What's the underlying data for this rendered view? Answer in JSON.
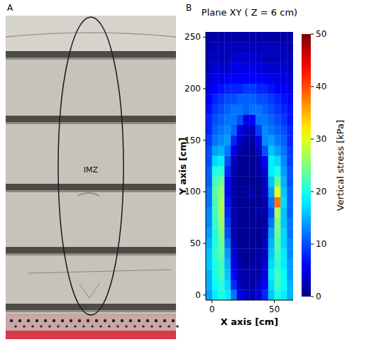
{
  "photo": {
    "label": "A",
    "annotation": "IMZ"
  },
  "chart_data": {
    "type": "heatmap",
    "panel_label": "B",
    "title": "Plane XY ( Z = 6 cm)",
    "x_label": "X axis [cm]",
    "y_label": "Y axis [cm]",
    "xlim": [
      -5,
      65
    ],
    "ylim": [
      -5,
      255
    ],
    "xticks": [
      0,
      50
    ],
    "yticks": [
      0,
      50,
      100,
      150,
      200,
      250
    ],
    "x": [
      -2.5,
      2.5,
      7.5,
      12.5,
      17.5,
      22.5,
      27.5,
      32.5,
      37.5,
      42.5,
      47.5,
      52.5,
      57.5,
      62.5
    ],
    "y": [
      0,
      10,
      20,
      30,
      40,
      50,
      60,
      70,
      80,
      90,
      100,
      110,
      120,
      130,
      140,
      150,
      160,
      170,
      180,
      190,
      200,
      210,
      220,
      230,
      240,
      250
    ],
    "cells": [
      [
        14,
        18,
        20,
        18,
        12,
        5,
        3,
        3,
        4,
        8,
        16,
        20,
        18,
        15
      ],
      [
        15,
        19,
        21,
        17,
        8,
        3,
        2,
        2,
        3,
        6,
        17,
        22,
        19,
        15
      ],
      [
        15,
        20,
        22,
        16,
        6,
        2,
        2,
        2,
        2,
        5,
        18,
        22,
        19,
        14
      ],
      [
        16,
        20,
        22,
        15,
        5,
        2,
        1,
        2,
        2,
        4,
        17,
        21,
        18,
        14
      ],
      [
        16,
        21,
        23,
        14,
        4,
        2,
        1,
        1,
        2,
        3,
        16,
        22,
        18,
        13
      ],
      [
        15,
        20,
        24,
        12,
        3,
        1,
        1,
        1,
        1,
        3,
        15,
        23,
        17,
        13
      ],
      [
        14,
        20,
        25,
        10,
        2,
        1,
        1,
        1,
        1,
        2,
        14,
        24,
        17,
        12
      ],
      [
        13,
        21,
        26,
        9,
        2,
        1,
        1,
        1,
        1,
        2,
        12,
        25,
        16,
        12
      ],
      [
        13,
        22,
        27,
        8,
        2,
        1,
        1,
        1,
        2,
        2,
        10,
        27,
        16,
        11
      ],
      [
        12,
        22,
        27,
        7,
        2,
        1,
        1,
        1,
        1,
        2,
        12,
        38,
        17,
        11
      ],
      [
        12,
        23,
        26,
        6,
        2,
        1,
        1,
        2,
        1,
        3,
        14,
        30,
        16,
        11
      ],
      [
        11,
        22,
        24,
        6,
        2,
        1,
        1,
        1,
        1,
        3,
        16,
        24,
        15,
        10
      ],
      [
        11,
        20,
        21,
        8,
        2,
        1,
        1,
        1,
        2,
        4,
        18,
        20,
        14,
        10
      ],
      [
        10,
        17,
        18,
        10,
        3,
        1,
        1,
        1,
        2,
        6,
        18,
        17,
        13,
        9
      ],
      [
        10,
        14,
        15,
        12,
        5,
        2,
        1,
        1,
        3,
        10,
        16,
        14,
        12,
        9
      ],
      [
        9,
        12,
        13,
        14,
        8,
        3,
        2,
        2,
        5,
        13,
        14,
        12,
        11,
        8
      ],
      [
        8,
        11,
        12,
        13,
        11,
        5,
        3,
        3,
        9,
        13,
        12,
        11,
        10,
        8
      ],
      [
        8,
        10,
        11,
        12,
        12,
        10,
        5,
        6,
        12,
        12,
        11,
        10,
        9,
        7
      ],
      [
        7,
        9,
        10,
        11,
        12,
        12,
        11,
        12,
        12,
        11,
        10,
        9,
        8,
        7
      ],
      [
        6,
        8,
        9,
        10,
        10,
        11,
        11,
        11,
        10,
        10,
        9,
        8,
        7,
        6
      ],
      [
        5,
        6,
        7,
        8,
        8,
        8,
        9,
        9,
        8,
        8,
        7,
        6,
        6,
        5
      ],
      [
        4,
        5,
        5,
        6,
        6,
        6,
        6,
        6,
        6,
        6,
        5,
        5,
        5,
        4
      ],
      [
        3,
        4,
        4,
        4,
        5,
        5,
        5,
        5,
        5,
        4,
        4,
        4,
        4,
        3
      ],
      [
        3,
        3,
        3,
        3,
        4,
        4,
        4,
        4,
        4,
        3,
        3,
        3,
        3,
        3
      ],
      [
        2,
        3,
        3,
        3,
        3,
        3,
        3,
        3,
        3,
        3,
        3,
        3,
        3,
        2
      ],
      [
        2,
        2,
        2,
        2,
        2,
        2,
        2,
        2,
        2,
        2,
        2,
        2,
        2,
        2
      ]
    ],
    "colorbar": {
      "label": "Vertical stress [kPa]",
      "lim": [
        0,
        50
      ],
      "ticks": [
        0,
        10,
        20,
        30,
        40,
        50
      ]
    }
  }
}
